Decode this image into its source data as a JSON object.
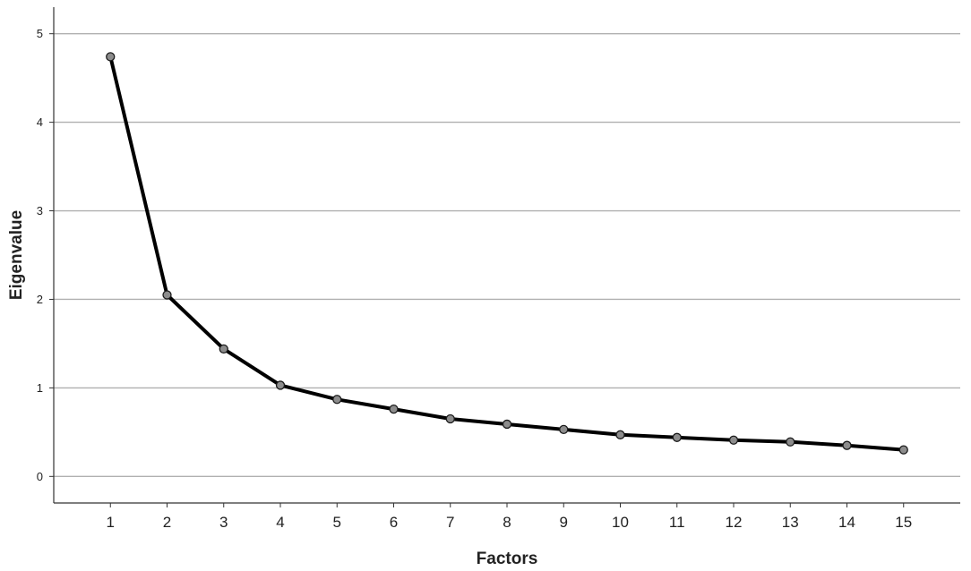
{
  "chart_data": {
    "type": "line",
    "title": "",
    "xlabel": "Factors",
    "ylabel": "Eigenvalue",
    "x": [
      1,
      2,
      3,
      4,
      5,
      6,
      7,
      8,
      9,
      10,
      11,
      12,
      13,
      14,
      15
    ],
    "series": [
      {
        "values": [
          4.74,
          2.05,
          1.44,
          1.03,
          0.87,
          0.76,
          0.65,
          0.59,
          0.53,
          0.47,
          0.44,
          0.41,
          0.39,
          0.35,
          0.3
        ]
      }
    ],
    "xlim": [
      0,
      16
    ],
    "ylim": [
      -0.3,
      5.3
    ],
    "yticks": [
      0,
      1,
      2,
      3,
      4,
      5
    ],
    "grid": "horizontal",
    "legend": "none",
    "colors": {
      "line": "#000000",
      "marker_fill": "#8c8c8c",
      "marker_stroke": "#1a1a1a",
      "grid": "#b0b0b0",
      "axis": "#333333"
    }
  }
}
